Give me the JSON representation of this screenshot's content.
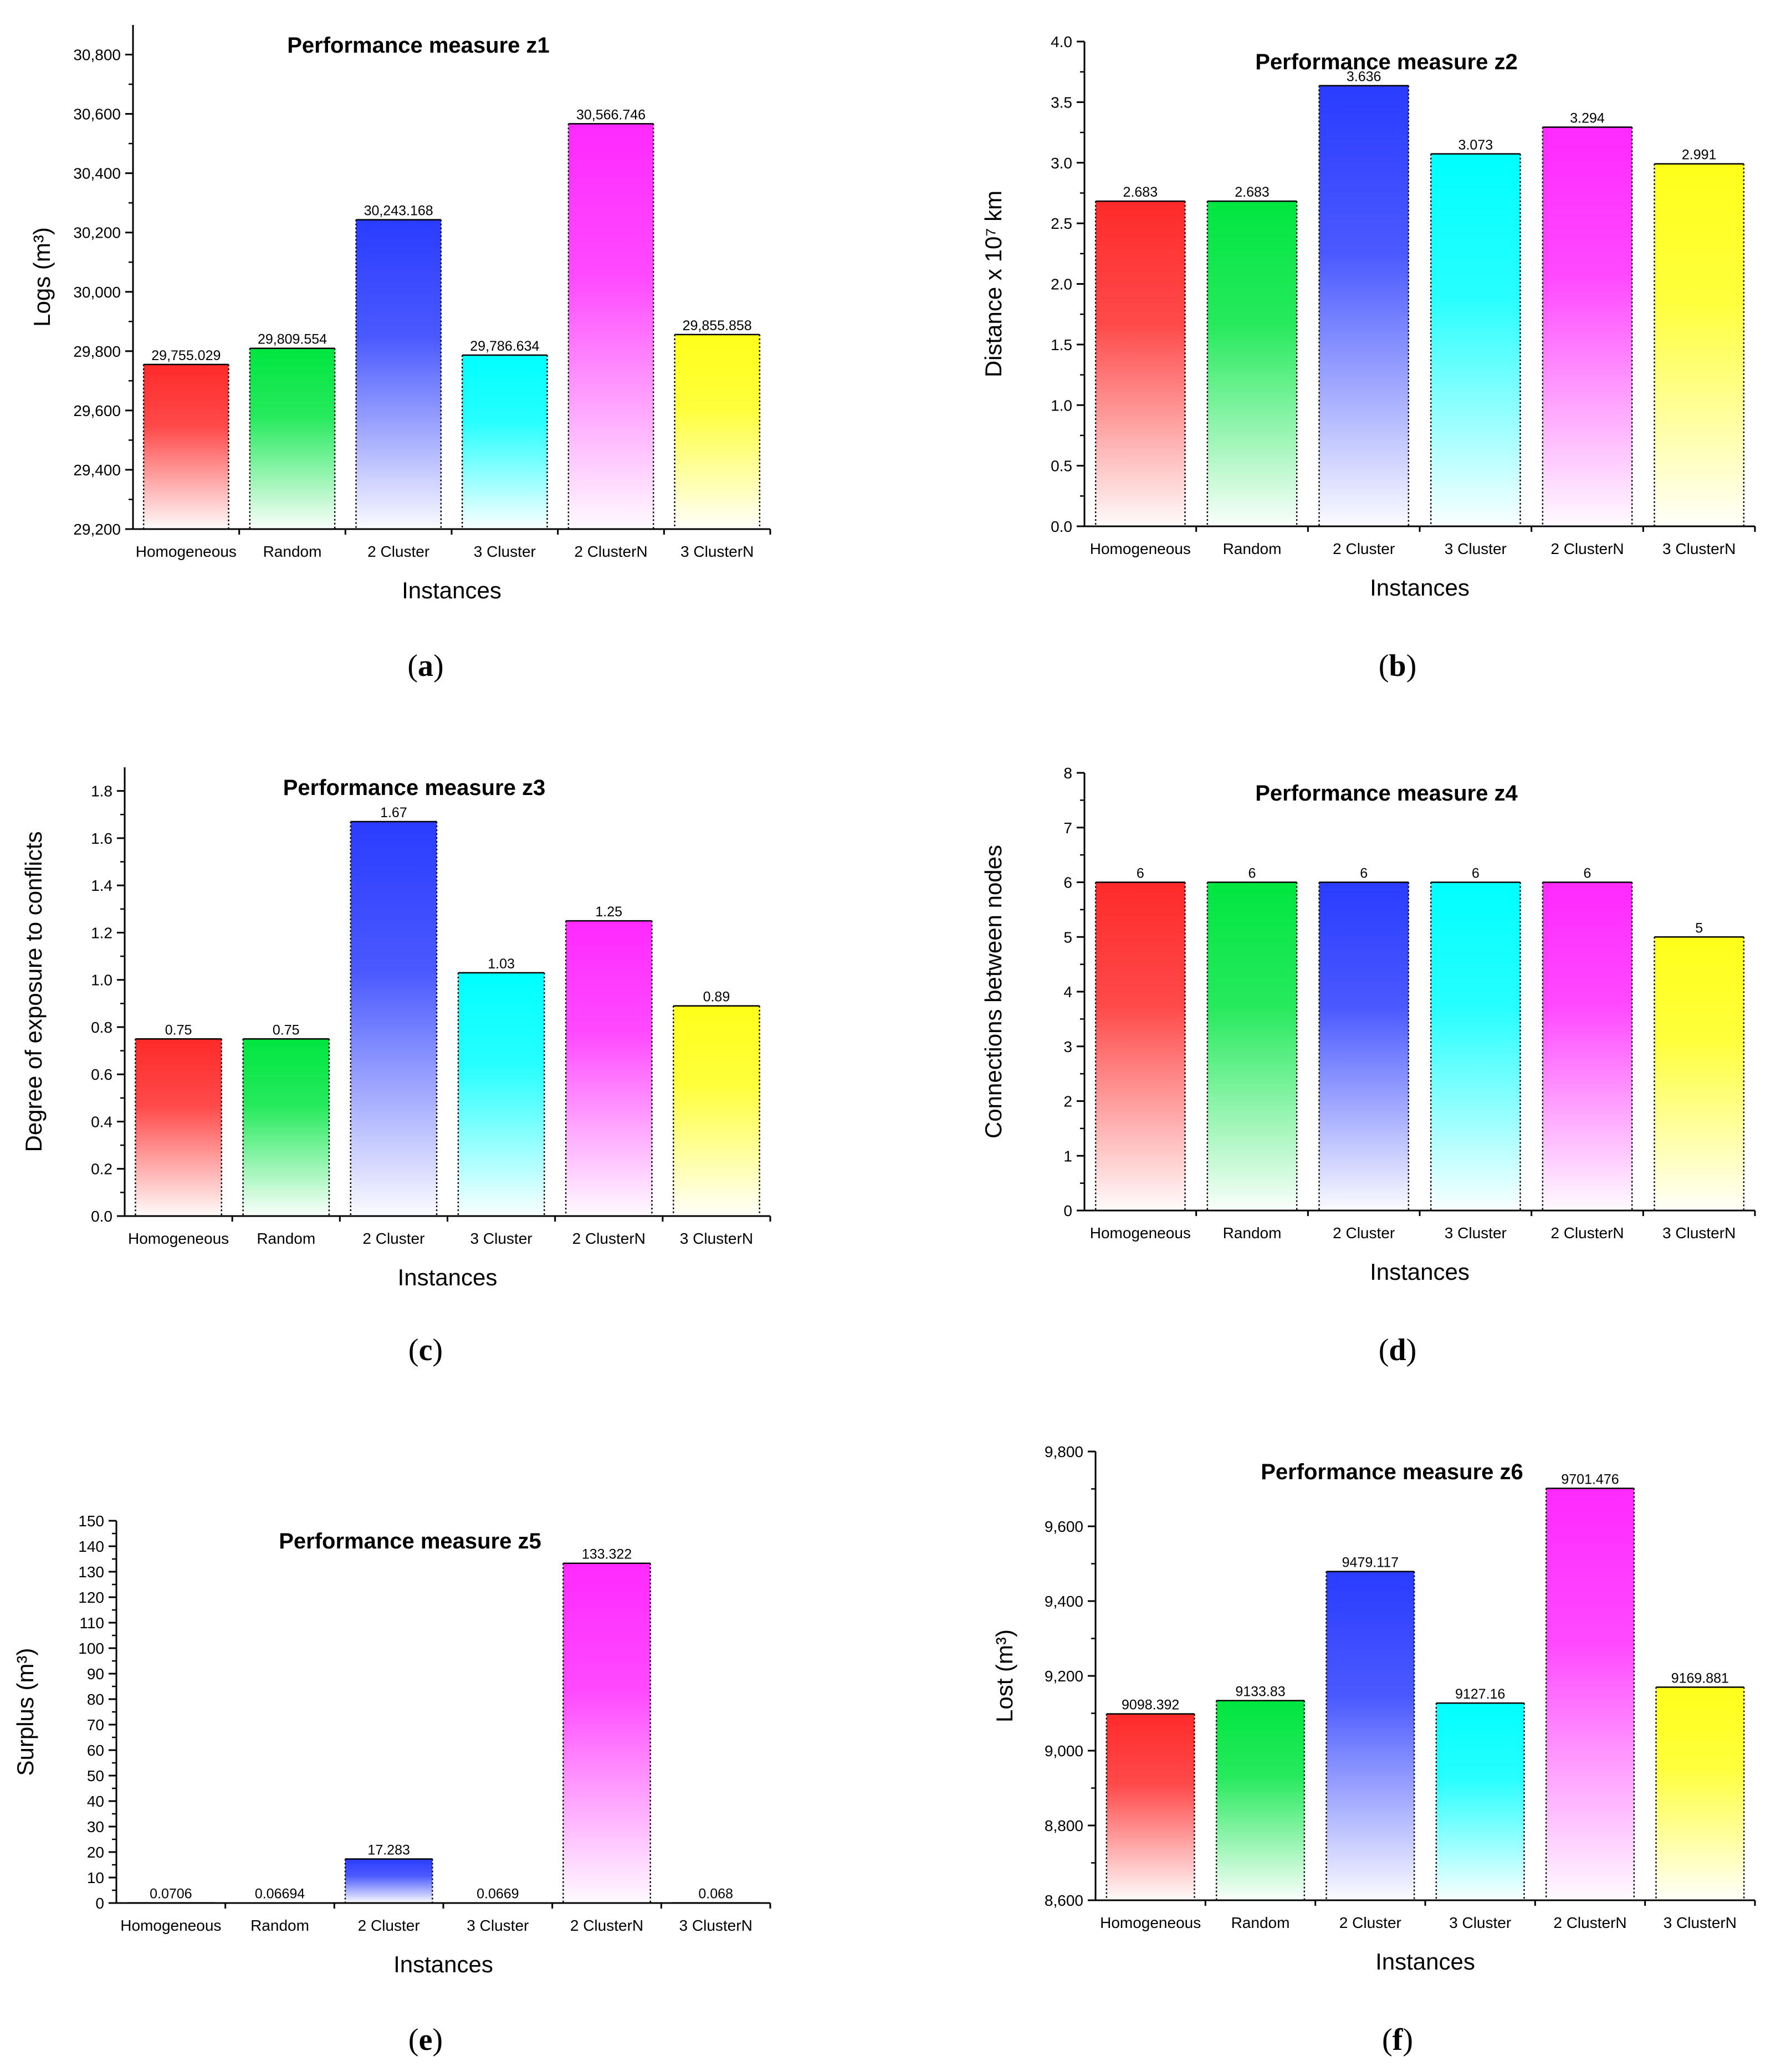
{
  "colors": [
    "#ff2a2a",
    "#00e640",
    "#2a3cff",
    "#00ffff",
    "#ff2aff",
    "#ffff1a"
  ],
  "chart_data": [
    {
      "type": "bar",
      "panel": "a",
      "title": "Performance measure z1",
      "xlabel": "Instances",
      "ylabel": "Logs (m³)",
      "categories": [
        "Homogeneous",
        "Random",
        "2 Cluster",
        "3 Cluster",
        "2 ClusterN",
        "3 ClusterN"
      ],
      "values": [
        29755.029,
        29809.554,
        30243.168,
        29786.634,
        30566.746,
        29855.858
      ],
      "value_labels": [
        "29,755.029",
        "29,809.554",
        "30,243.168",
        "29,786.634",
        "30,566.746",
        "29,855.858"
      ],
      "ylim": [
        29200,
        30900
      ],
      "yticks": [
        29200,
        29400,
        29600,
        29800,
        30000,
        30200,
        30400,
        30600,
        30800
      ],
      "ytick_labels": [
        "29,200",
        "29,400",
        "29,600",
        "29,800",
        "30,000",
        "30,200",
        "30,400",
        "30,600",
        "30,800"
      ]
    },
    {
      "type": "bar",
      "panel": "b",
      "title": "Performance measure z2",
      "xlabel": "Instances",
      "ylabel": "Distance x 10⁷ km",
      "categories": [
        "Homogeneous",
        "Random",
        "2 Cluster",
        "3 Cluster",
        "2 ClusterN",
        "3 ClusterN"
      ],
      "values": [
        2.683,
        2.683,
        3.636,
        3.073,
        3.294,
        2.991
      ],
      "value_labels": [
        "2.683",
        "2.683",
        "3.636",
        "3.073",
        "3.294",
        "2.991"
      ],
      "ylim": [
        0,
        4
      ],
      "yticks": [
        0,
        0.5,
        1,
        1.5,
        2,
        2.5,
        3,
        3.5,
        4
      ],
      "ytick_labels": [
        "0.0",
        "0.5",
        "1.0",
        "1.5",
        "2.0",
        "2.5",
        "3.0",
        "3.5",
        "4.0"
      ]
    },
    {
      "type": "bar",
      "panel": "c",
      "title": "Performance measure z3",
      "xlabel": "Instances",
      "ylabel": "Degree of exposure to conflicts",
      "categories": [
        "Homogeneous",
        "Random",
        "2 Cluster",
        "3 Cluster",
        "2 ClusterN",
        "3 ClusterN"
      ],
      "values": [
        0.75,
        0.75,
        1.67,
        1.03,
        1.25,
        0.89
      ],
      "value_labels": [
        "0.75",
        "0.75",
        "1.67",
        "1.03",
        "1.25",
        "0.89"
      ],
      "ylim": [
        0,
        1.9
      ],
      "yticks": [
        0,
        0.2,
        0.4,
        0.6,
        0.8,
        1,
        1.2,
        1.4,
        1.6,
        1.8
      ],
      "ytick_labels": [
        "0.0",
        "0.2",
        "0.4",
        "0.6",
        "0.8",
        "1.0",
        "1.2",
        "1.4",
        "1.6",
        "1.8"
      ]
    },
    {
      "type": "bar",
      "panel": "d",
      "title": "Performance measure z4",
      "xlabel": "Instances",
      "ylabel": "Connections between nodes",
      "categories": [
        "Homogeneous",
        "Random",
        "2 Cluster",
        "3 Cluster",
        "2 ClusterN",
        "3 ClusterN"
      ],
      "values": [
        6,
        6,
        6,
        6,
        6,
        5
      ],
      "value_labels": [
        "6",
        "6",
        "6",
        "6",
        "6",
        "5"
      ],
      "ylim": [
        0,
        8
      ],
      "yticks": [
        0,
        1,
        2,
        3,
        4,
        5,
        6,
        7,
        8
      ],
      "ytick_labels": [
        "0",
        "1",
        "2",
        "3",
        "4",
        "5",
        "6",
        "7",
        "8"
      ]
    },
    {
      "type": "bar",
      "panel": "e",
      "title": "Performance measure z5",
      "xlabel": "Instances",
      "ylabel": "Surplus (m³)",
      "categories": [
        "Homogeneous",
        "Random",
        "2 Cluster",
        "3 Cluster",
        "2 ClusterN",
        "3 ClusterN"
      ],
      "values": [
        0.0706,
        0.06694,
        17.283,
        0.0669,
        133.322,
        0.068
      ],
      "value_labels": [
        "0.0706",
        "0.06694",
        "17.283",
        "0.0669",
        "133.322",
        "0.068"
      ],
      "ylim": [
        0,
        150
      ],
      "yticks": [
        0,
        10,
        20,
        30,
        40,
        50,
        60,
        70,
        80,
        90,
        100,
        110,
        120,
        130,
        140,
        150
      ],
      "ytick_labels": [
        "0",
        "10",
        "20",
        "30",
        "40",
        "50",
        "60",
        "70",
        "80",
        "90",
        "100",
        "110",
        "120",
        "130",
        "140",
        "150"
      ]
    },
    {
      "type": "bar",
      "panel": "f",
      "title": "Performance measure z6",
      "xlabel": "Instances",
      "ylabel": "Lost (m³)",
      "categories": [
        "Homogeneous",
        "Random",
        "2 Cluster",
        "3 Cluster",
        "2 ClusterN",
        "3 ClusterN"
      ],
      "values": [
        9098.392,
        9133.83,
        9479.117,
        9127.16,
        9701.476,
        9169.881
      ],
      "value_labels": [
        "9098.392",
        "9133.83",
        "9479.117",
        "9127.16",
        "9701.476",
        "9169.881"
      ],
      "ylim": [
        8600,
        9800
      ],
      "yticks": [
        8600,
        8800,
        9000,
        9200,
        9400,
        9600,
        9800
      ],
      "ytick_labels": [
        "8,600",
        "8,800",
        "9,000",
        "9,200",
        "9,400",
        "9,600",
        "9,800"
      ]
    }
  ],
  "captions": [
    "a",
    "b",
    "c",
    "d",
    "e",
    "f"
  ]
}
